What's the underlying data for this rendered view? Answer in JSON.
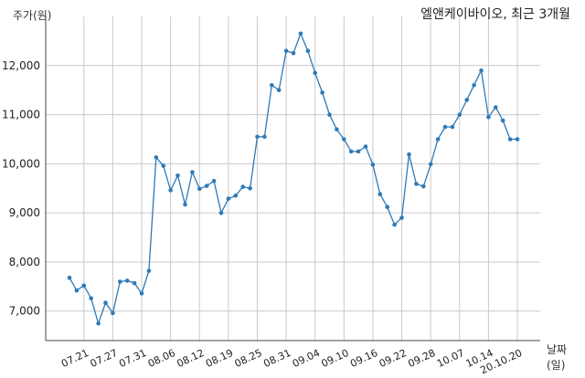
{
  "chart_data": {
    "type": "line",
    "title": "엘앤케이바이오, 최근 3개월",
    "ylabel": "주가(원)",
    "xlabel": "날짜(일)",
    "ylim": [
      6400,
      13000
    ],
    "grid": true,
    "yticks": [
      7000,
      8000,
      9000,
      10000,
      11000,
      12000
    ],
    "ytick_labels": [
      "7,000",
      "8,000",
      "9,000",
      "10,000",
      "11,000",
      "12,000"
    ],
    "xtick_labels": [
      "07.21",
      "07.27",
      "07.31",
      "08.06",
      "08.12",
      "08.19",
      "08.25",
      "08.31",
      "09.04",
      "09.10",
      "09.16",
      "09.22",
      "09.28",
      "10.07",
      "10.14",
      "20.10.20"
    ],
    "xtick_indices": [
      2,
      6,
      10,
      14,
      18,
      22,
      26,
      30,
      34,
      38,
      42,
      46,
      50,
      54,
      58,
      62
    ],
    "color": "#2e7ab8",
    "series": [
      {
        "values": [
          7680,
          7420,
          7520,
          7260,
          6750,
          7170,
          6960,
          7600,
          7620,
          7570,
          7360,
          7820,
          10130,
          9960,
          9460,
          9760,
          9170,
          9830,
          9490,
          9550,
          9650,
          9000,
          9290,
          9350,
          9530,
          9500,
          10550,
          10550,
          11600,
          11500,
          12300,
          12250,
          12650,
          12300,
          11850,
          11450,
          11000,
          10700,
          10500,
          10250,
          10250,
          10350,
          9980,
          9380,
          9120,
          8760,
          8900,
          10190,
          9590,
          9540,
          9990,
          10500,
          10750,
          10750,
          11000,
          11300,
          11600,
          11900,
          10950,
          11150,
          10880,
          10500,
          10500
        ]
      }
    ]
  }
}
